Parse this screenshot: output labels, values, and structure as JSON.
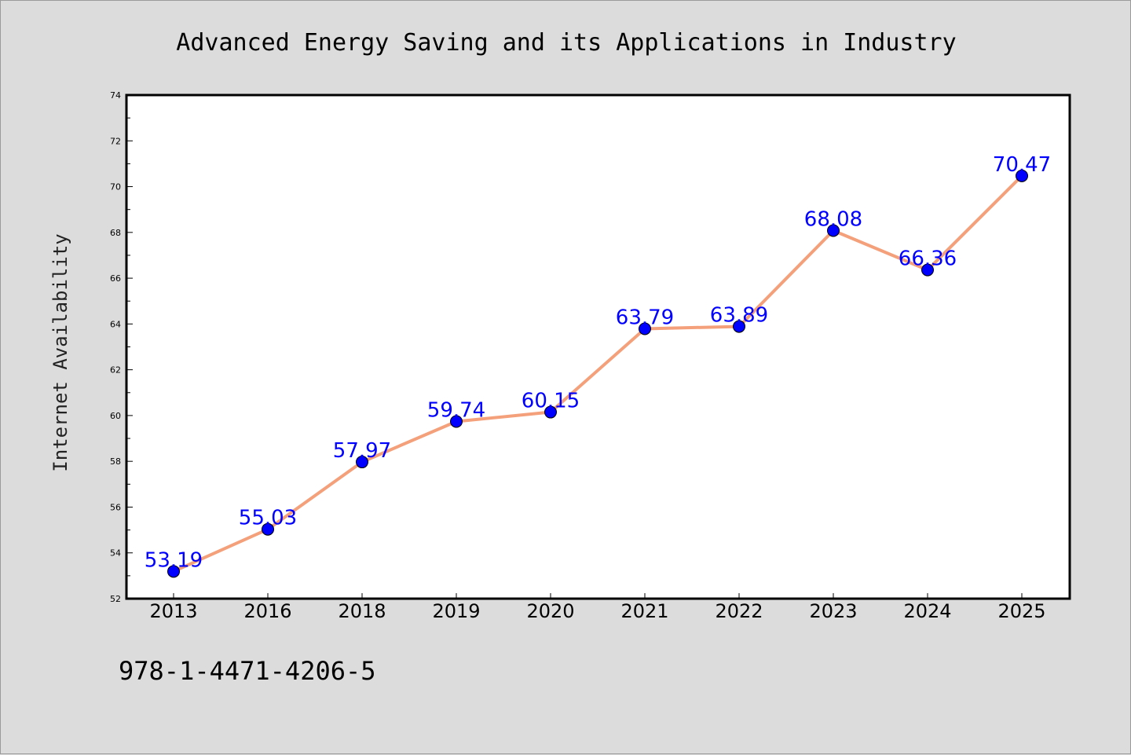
{
  "chart_data": {
    "type": "line",
    "title": "Advanced Energy Saving and its Applications in Industry",
    "ylabel": "Internet Availability",
    "xlabel": "",
    "categories": [
      "2013",
      "2016",
      "2018",
      "2019",
      "2020",
      "2021",
      "2022",
      "2023",
      "2024",
      "2025"
    ],
    "series": [
      {
        "values": [
          53.19,
          55.03,
          57.97,
          59.74,
          60.15,
          63.79,
          63.89,
          68.08,
          66.36,
          70.47
        ],
        "data_labels": [
          "53.19",
          "55.03",
          "57.97",
          "59.74",
          "60.15",
          "63.79",
          "63.89",
          "68.08",
          "66.36",
          "70.47"
        ],
        "line_color": "#f4a07a",
        "marker_color": "#0000ff"
      }
    ],
    "ylim": [
      52,
      74
    ],
    "yticks": [
      "52",
      "54",
      "56",
      "58",
      "60",
      "62",
      "64",
      "66",
      "68",
      "70",
      "72",
      "74"
    ],
    "grid": false,
    "legend": "none"
  },
  "footer": {
    "isbn": "978-1-4471-4206-5"
  },
  "colors": {
    "background": "#dcdcdc",
    "plot_background": "#ffffff",
    "line": "#f4a07a",
    "marker": "#0000ff",
    "data_label": "#0000ff"
  }
}
